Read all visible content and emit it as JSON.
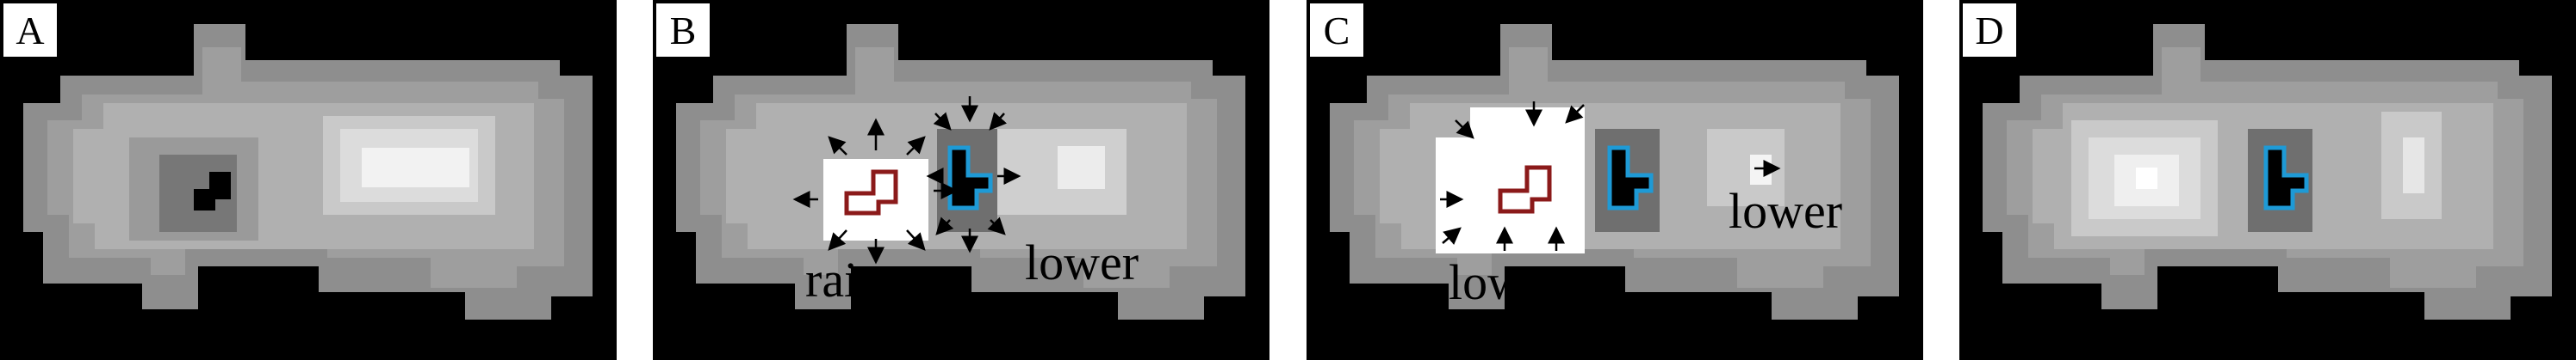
{
  "panels": [
    {
      "id": "A",
      "label": "A",
      "annotations": []
    },
    {
      "id": "B",
      "label": "B",
      "annotations": [
        "raise",
        "lower"
      ]
    },
    {
      "id": "C",
      "label": "C",
      "annotations": [
        "lower",
        "lower"
      ]
    },
    {
      "id": "D",
      "label": "D",
      "annotations": []
    }
  ],
  "colors": {
    "background": "#000000",
    "raise_outline": "#8b1a1a",
    "lower_outline": "#1e9ad6",
    "arrow": "#000000",
    "highlight": "#ffffff"
  }
}
